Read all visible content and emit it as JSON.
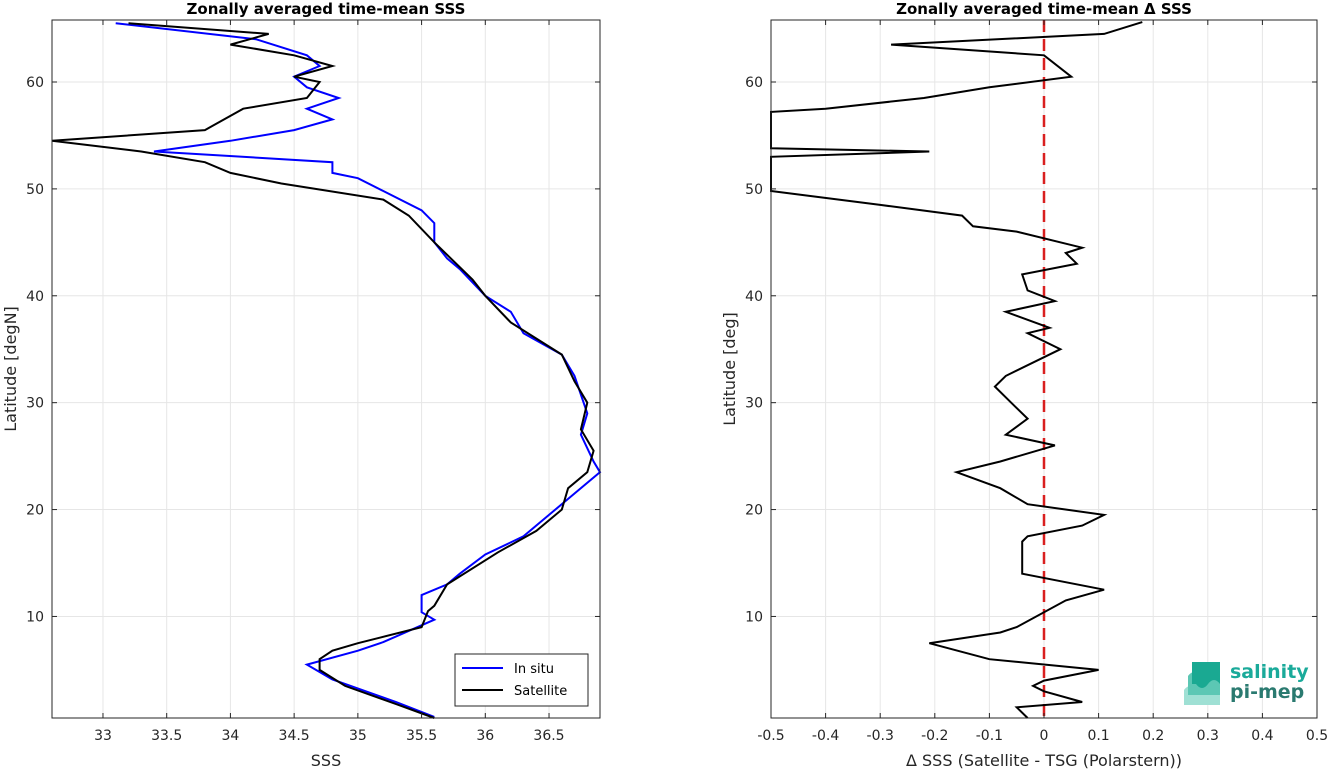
{
  "chart_data": [
    {
      "type": "line",
      "title": "Zonally averaged time-mean SSS",
      "xlabel": "SSS",
      "ylabel": "Latitude [degN]",
      "xlim": [
        32.6,
        36.9
      ],
      "ylim": [
        0.5,
        65.8
      ],
      "xticks": [
        "33",
        "33.5",
        "34",
        "34.5",
        "35",
        "35.5",
        "36",
        "36.5"
      ],
      "xtick_values": [
        33,
        33.5,
        34,
        34.5,
        35,
        35.5,
        36,
        36.5
      ],
      "yticks": [
        "10",
        "20",
        "30",
        "40",
        "50",
        "60"
      ],
      "ytick_values": [
        10,
        20,
        30,
        40,
        50,
        60
      ],
      "grid": true,
      "legend_position": "bottom-right",
      "series": [
        {
          "name": "In situ",
          "color": "#0000ff",
          "points": [
            [
              35.6,
              0.6
            ],
            [
              35.3,
              2.0
            ],
            [
              34.8,
              4.1
            ],
            [
              34.6,
              5.5
            ],
            [
              35.0,
              6.8
            ],
            [
              35.2,
              7.6
            ],
            [
              35.6,
              9.7
            ],
            [
              35.5,
              10.4
            ],
            [
              35.5,
              12.0
            ],
            [
              35.7,
              13.0
            ],
            [
              35.8,
              14.0
            ],
            [
              36.0,
              15.8
            ],
            [
              36.3,
              17.5
            ],
            [
              36.5,
              19.5
            ],
            [
              36.7,
              21.5
            ],
            [
              36.9,
              23.5
            ],
            [
              36.85,
              24.5
            ],
            [
              36.75,
              27.0
            ],
            [
              36.8,
              29.0
            ],
            [
              36.7,
              32.5
            ],
            [
              36.6,
              34.5
            ],
            [
              36.3,
              36.5
            ],
            [
              36.2,
              38.5
            ],
            [
              36.0,
              40.0
            ],
            [
              35.8,
              42.5
            ],
            [
              35.7,
              43.5
            ],
            [
              35.6,
              45.0
            ],
            [
              35.6,
              46.8
            ],
            [
              35.5,
              48.0
            ],
            [
              35.2,
              49.8
            ],
            [
              35.0,
              51.0
            ],
            [
              34.8,
              51.5
            ],
            [
              34.8,
              52.5
            ],
            [
              33.4,
              53.5
            ],
            [
              34.0,
              54.5
            ],
            [
              34.5,
              55.5
            ],
            [
              34.8,
              56.5
            ],
            [
              34.6,
              57.5
            ],
            [
              34.85,
              58.5
            ],
            [
              34.6,
              59.5
            ],
            [
              34.5,
              60.5
            ],
            [
              34.7,
              61.5
            ],
            [
              34.6,
              62.5
            ],
            [
              34.2,
              64.0
            ],
            [
              33.1,
              65.5
            ]
          ]
        },
        {
          "name": "Satellite",
          "color": "#000000",
          "points": [
            [
              35.6,
              0.5
            ],
            [
              35.3,
              1.8
            ],
            [
              34.9,
              3.5
            ],
            [
              34.7,
              5.0
            ],
            [
              34.7,
              6.0
            ],
            [
              34.8,
              6.8
            ],
            [
              35.0,
              7.5
            ],
            [
              35.5,
              9.0
            ],
            [
              35.55,
              10.5
            ],
            [
              35.6,
              11.0
            ],
            [
              35.7,
              13.0
            ],
            [
              36.1,
              16.0
            ],
            [
              36.4,
              18.0
            ],
            [
              36.6,
              20.0
            ],
            [
              36.65,
              22.0
            ],
            [
              36.8,
              23.5
            ],
            [
              36.85,
              25.5
            ],
            [
              36.75,
              27.5
            ],
            [
              36.8,
              30.0
            ],
            [
              36.7,
              32.0
            ],
            [
              36.6,
              34.5
            ],
            [
              36.2,
              37.5
            ],
            [
              36.0,
              40.0
            ],
            [
              35.9,
              41.5
            ],
            [
              35.6,
              45.0
            ],
            [
              35.4,
              47.5
            ],
            [
              35.2,
              49.0
            ],
            [
              34.4,
              50.5
            ],
            [
              34.0,
              51.5
            ],
            [
              33.8,
              52.5
            ],
            [
              33.3,
              53.5
            ],
            [
              32.6,
              54.5
            ],
            [
              33.8,
              55.5
            ],
            [
              34.1,
              57.5
            ],
            [
              34.6,
              58.5
            ],
            [
              34.7,
              60.0
            ],
            [
              34.5,
              60.5
            ],
            [
              34.8,
              61.5
            ],
            [
              34.5,
              62.5
            ],
            [
              34.0,
              63.5
            ],
            [
              34.3,
              64.5
            ],
            [
              33.2,
              65.5
            ]
          ]
        }
      ]
    },
    {
      "type": "line",
      "title": "Zonally averaged time-mean Δ SSS",
      "xlabel": "Δ SSS (Satellite - TSG (Polarstern))",
      "ylabel": "Latitude [deg]",
      "xlim": [
        -0.5,
        0.5
      ],
      "ylim": [
        0.5,
        65.8
      ],
      "xticks": [
        "-0.5",
        "-0.4",
        "-0.3",
        "-0.2",
        "-0.1",
        "0",
        "0.1",
        "0.2",
        "0.3",
        "0.4",
        "0.5"
      ],
      "xtick_values": [
        -0.5,
        -0.4,
        -0.3,
        -0.2,
        -0.1,
        0,
        0.1,
        0.2,
        0.3,
        0.4,
        0.5
      ],
      "yticks": [
        "10",
        "20",
        "30",
        "40",
        "50",
        "60"
      ],
      "ytick_values": [
        10,
        20,
        30,
        40,
        50,
        60
      ],
      "grid": true,
      "reference_line": {
        "x": 0,
        "color": "#d91f1f",
        "style": "dashed"
      },
      "series": [
        {
          "name": "",
          "color": "#000000",
          "points": [
            [
              -0.03,
              0.5
            ],
            [
              -0.05,
              1.5
            ],
            [
              0.07,
              2.0
            ],
            [
              0.0,
              3.0
            ],
            [
              -0.02,
              3.5
            ],
            [
              0.0,
              4.0
            ],
            [
              0.1,
              5.0
            ],
            [
              -0.1,
              6.0
            ],
            [
              -0.21,
              7.5
            ],
            [
              -0.08,
              8.5
            ],
            [
              -0.05,
              9.0
            ],
            [
              0.04,
              11.5
            ],
            [
              0.11,
              12.5
            ],
            [
              -0.04,
              14.0
            ],
            [
              -0.04,
              15.5
            ],
            [
              -0.04,
              17.0
            ],
            [
              -0.03,
              17.5
            ],
            [
              0.07,
              18.5
            ],
            [
              0.11,
              19.5
            ],
            [
              -0.03,
              20.5
            ],
            [
              -0.08,
              22.0
            ],
            [
              -0.16,
              23.5
            ],
            [
              -0.08,
              24.5
            ],
            [
              0.02,
              26.0
            ],
            [
              -0.07,
              27.0
            ],
            [
              -0.03,
              28.5
            ],
            [
              -0.06,
              30.0
            ],
            [
              -0.09,
              31.5
            ],
            [
              -0.07,
              32.5
            ],
            [
              0.03,
              35.0
            ],
            [
              -0.03,
              36.5
            ],
            [
              0.01,
              37.0
            ],
            [
              -0.07,
              38.5
            ],
            [
              0.02,
              39.5
            ],
            [
              -0.03,
              40.5
            ],
            [
              -0.04,
              42.0
            ],
            [
              0.06,
              43.0
            ],
            [
              0.04,
              44.0
            ],
            [
              0.07,
              44.5
            ],
            [
              -0.05,
              46.0
            ],
            [
              -0.13,
              46.5
            ],
            [
              -0.15,
              47.5
            ],
            [
              -0.3,
              48.5
            ],
            [
              -0.5,
              49.8
            ],
            [
              -0.5,
              53.0
            ],
            [
              -0.21,
              53.5
            ],
            [
              -0.5,
              53.8
            ],
            [
              -0.5,
              57.2
            ],
            [
              -0.4,
              57.5
            ],
            [
              -0.22,
              58.5
            ],
            [
              -0.1,
              59.5
            ],
            [
              0.05,
              60.5
            ],
            [
              0.0,
              62.5
            ],
            [
              -0.28,
              63.5
            ],
            [
              0.11,
              64.5
            ],
            [
              0.18,
              65.6
            ]
          ]
        }
      ]
    }
  ],
  "legend": {
    "entries": [
      {
        "label": "In situ",
        "color": "#0000ff"
      },
      {
        "label": "Satellite",
        "color": "#000000"
      }
    ]
  },
  "logo": {
    "line1": "salinity",
    "line2": "pi-mep"
  }
}
